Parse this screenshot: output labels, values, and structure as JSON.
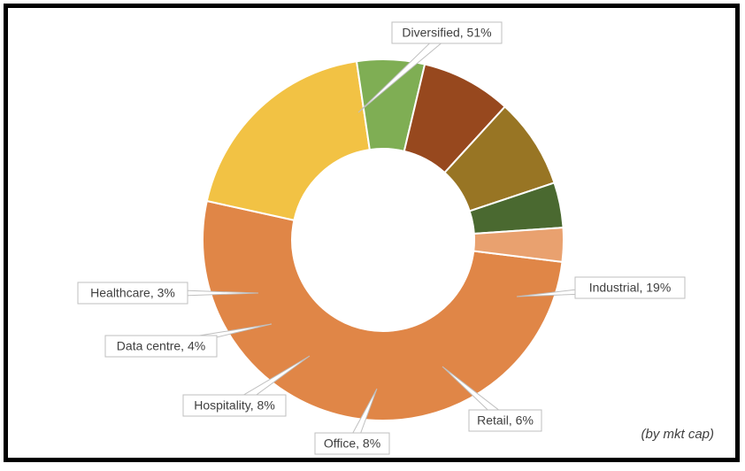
{
  "chart_data": {
    "type": "donut",
    "title": "",
    "note": "(by mkt cap)",
    "slices": [
      {
        "label": "Diversified",
        "value": 51,
        "display": "Diversified, 51%",
        "color": "#E08647"
      },
      {
        "label": "Industrial",
        "value": 19,
        "display": "Industrial, 19%",
        "color": "#F2C244"
      },
      {
        "label": "Retail",
        "value": 6,
        "display": "Retail, 6%",
        "color": "#7FAE54"
      },
      {
        "label": "Office",
        "value": 8,
        "display": "Office, 8%",
        "color": "#97481E"
      },
      {
        "label": "Hospitality",
        "value": 8,
        "display": "Hospitality, 8%",
        "color": "#987524"
      },
      {
        "label": "Data centre",
        "value": 4,
        "display": "Data centre, 4%",
        "color": "#4A6930"
      },
      {
        "label": "Healthcare",
        "value": 3,
        "display": "Healthcare, 3%",
        "color": "#E9A16F"
      }
    ]
  }
}
